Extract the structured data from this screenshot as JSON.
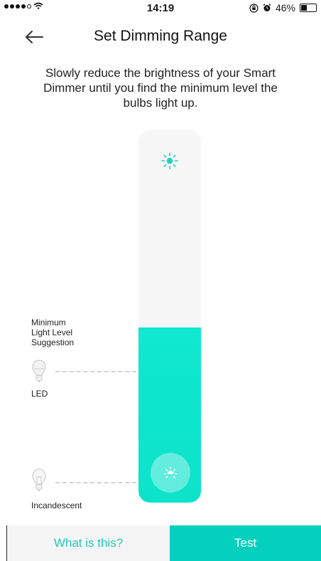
{
  "status_bar": {
    "time": "14:19",
    "battery_text": "46%",
    "battery_level": 0.46,
    "signal_bars_filled": 4,
    "signal_bars_total": 5
  },
  "header": {
    "title": "Set Dimming Range"
  },
  "instruction": "Slowly reduce the brightness of your Smart Dimmer until you find the minimum level the bulbs light up.",
  "slider": {
    "level": 0.47,
    "fill_color": "#0de3cb"
  },
  "min_light_label": "Minimum\nLight Level\nSuggestion",
  "bulbs": {
    "led_label": "LED",
    "incandescent_label": "Incandescent"
  },
  "buttons": {
    "what_is_this": "What is this?",
    "test": "Test"
  },
  "colors": {
    "accent": "#05cfbd",
    "accent_text": "#21c9b6"
  },
  "icons": {
    "back": "arrow-left-icon",
    "brightness": "sun-icon",
    "dim_handle": "dim-sun-icon",
    "led_bulb": "led-bulb-icon",
    "incandescent_bulb": "incandescent-bulb-icon"
  }
}
